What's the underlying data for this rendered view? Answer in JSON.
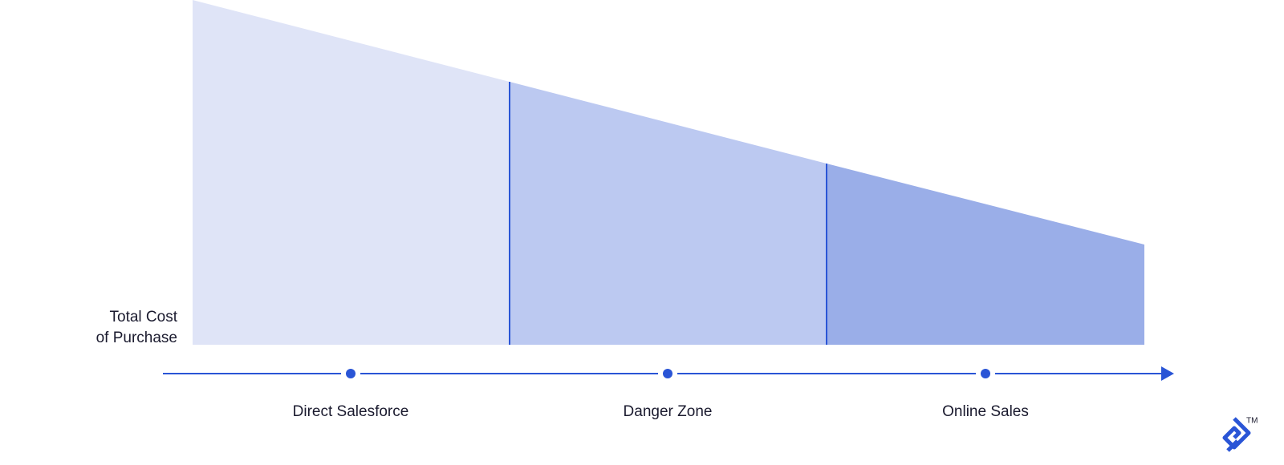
{
  "y_axis_label": {
    "lines": [
      "Total Cost",
      "of Purchase"
    ]
  },
  "stages": [
    {
      "label": "Direct Salesforce"
    },
    {
      "label": "Danger Zone"
    },
    {
      "label": "Online Sales"
    }
  ],
  "logo": {
    "trademark": "TM"
  }
}
